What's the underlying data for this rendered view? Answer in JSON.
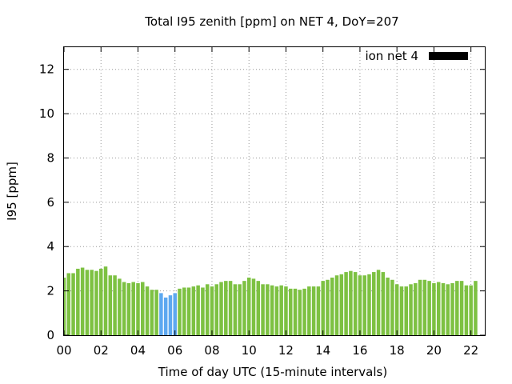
{
  "chart_data": {
    "type": "bar",
    "title": "Total I95 zenith [ppm] on NET 4, DoY=207",
    "xlabel": "Time of day UTC (15-minute intervals)",
    "ylabel": "I95 [ppm]",
    "xlim": [
      0,
      22.75
    ],
    "ylim": [
      0,
      13
    ],
    "x_ticks": [
      "00",
      "02",
      "04",
      "06",
      "08",
      "10",
      "12",
      "14",
      "16",
      "18",
      "20",
      "22"
    ],
    "y_ticks": [
      "0",
      "2",
      "4",
      "6",
      "8",
      "10",
      "12"
    ],
    "grid": true,
    "legend": {
      "position": "top-right",
      "label": "ion net 4",
      "swatch_color": "#000000"
    },
    "colors": {
      "normal": "#7dc142",
      "low": "#5da8f0"
    },
    "interval_hours": 0.25,
    "series": [
      {
        "values": [
          2.6,
          2.8,
          2.8,
          3.0,
          3.05,
          2.95,
          2.95,
          2.9,
          3.0,
          3.1,
          2.7,
          2.7,
          2.55,
          2.4,
          2.35,
          2.4,
          2.35,
          2.4,
          2.2,
          2.05,
          2.05,
          1.9,
          1.7,
          1.8,
          1.9,
          2.1,
          2.15,
          2.15,
          2.2,
          2.25,
          2.15,
          2.3,
          2.2,
          2.3,
          2.4,
          2.45,
          2.45,
          2.3,
          2.3,
          2.45,
          2.6,
          2.55,
          2.45,
          2.3,
          2.3,
          2.25,
          2.2,
          2.25,
          2.2,
          2.1,
          2.1,
          2.05,
          2.1,
          2.2,
          2.2,
          2.2,
          2.45,
          2.5,
          2.6,
          2.7,
          2.75,
          2.85,
          2.9,
          2.85,
          2.7,
          2.7,
          2.75,
          2.85,
          2.95,
          2.85,
          2.6,
          2.5,
          2.3,
          2.2,
          2.2,
          2.3,
          2.35,
          2.5,
          2.5,
          2.45,
          2.35,
          2.4,
          2.35,
          2.3,
          2.35,
          2.45,
          2.45,
          2.25,
          2.25,
          2.45
        ]
      }
    ],
    "low_range": {
      "from_index": 21,
      "to_index": 24
    }
  }
}
